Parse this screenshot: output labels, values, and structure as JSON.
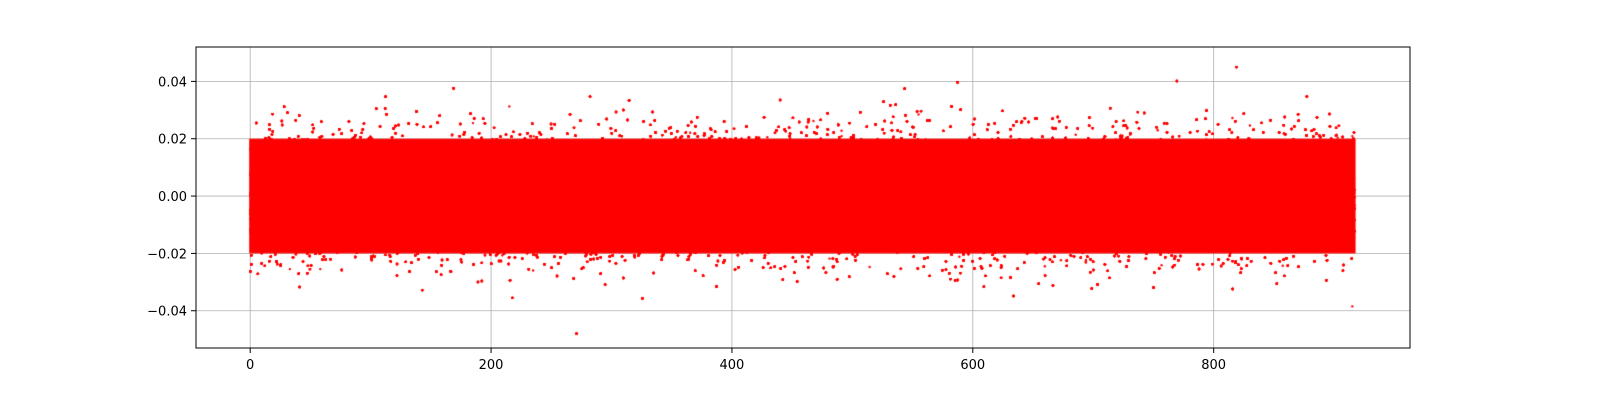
{
  "chart_data": {
    "type": "scatter",
    "title": "",
    "xlabel": "",
    "ylabel": "",
    "xlim": [
      -45,
      963
    ],
    "ylim": [
      -0.053,
      0.052
    ],
    "x_range": [
      0,
      917
    ],
    "x_ticks": [
      0,
      200,
      400,
      600,
      800
    ],
    "x_tick_labels": [
      "0",
      "200",
      "400",
      "600",
      "800"
    ],
    "y_ticks": [
      -0.04,
      -0.02,
      0.0,
      0.02,
      0.04
    ],
    "y_tick_labels": [
      "−0.04",
      "−0.02",
      "0.00",
      "0.02",
      "0.04"
    ],
    "grid": true,
    "legend": "none",
    "marker": "point",
    "series": [
      {
        "color": "#ff0000",
        "distribution": "noise around zero",
        "mean": 0.0,
        "core_band": [
          -0.02,
          0.02
        ],
        "min": -0.048,
        "max": 0.047,
        "approx_points": 90000
      }
    ]
  }
}
